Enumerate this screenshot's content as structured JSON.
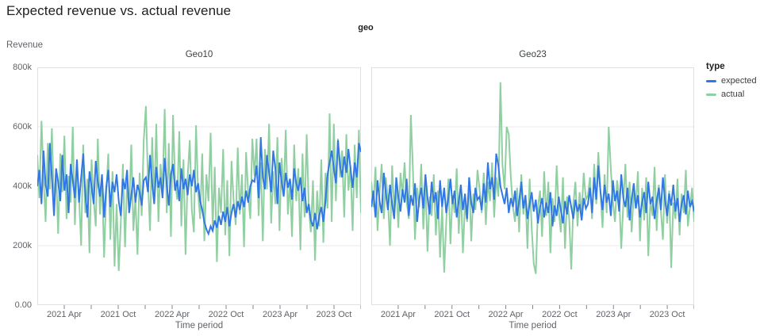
{
  "chart_data": {
    "type": "line",
    "title": "Expected revenue vs. actual revenue",
    "facet_label": "geo",
    "xlabel": "Time period",
    "ylabel": "Revenue",
    "ylim": [
      0,
      800000
    ],
    "y_tick_labels": [
      "800k",
      "600k",
      "400k",
      "200k",
      "0.00"
    ],
    "y_tick_values": [
      800000,
      600000,
      400000,
      200000,
      0
    ],
    "x_tick_labels": [
      "2021 Apr",
      "2021 Oct",
      "2022 Apr",
      "2022 Oct",
      "2023 Apr",
      "2023 Oct"
    ],
    "x_range_months": [
      "2021-01",
      "2023-12"
    ],
    "frequency": "weekly",
    "values_unit": "thousands (k) of revenue",
    "grid": "horizontal",
    "legend": {
      "title": "type",
      "position": "right",
      "entries": [
        {
          "name": "expected",
          "color": "#3178e4"
        },
        {
          "name": "actual",
          "color": "#90cfa1"
        }
      ]
    },
    "panels": [
      {
        "title": "Geo10",
        "series": [
          {
            "name": "expected",
            "color": "#3178e4",
            "values": [
              400,
              455,
              340,
              520,
              405,
              365,
              545,
              430,
              300,
              460,
              415,
              350,
              505,
              385,
              440,
              310,
              475,
              420,
              360,
              490,
              345,
              430,
              510,
              375,
              295,
              450,
              400,
              340,
              485,
              415,
              365,
              440,
              295,
              395,
              455,
              330,
              415,
              380,
              440,
              350,
              300,
              425,
              390,
              455,
              310,
              370,
              430,
              345,
              405,
              380,
              335,
              420,
              430,
              380,
              505,
              410,
              340,
              465,
              395,
              430,
              360,
              495,
              405,
              335,
              440,
              475,
              385,
              420,
              350,
              460,
              390,
              425,
              370,
              440,
              400,
              455,
              380,
              410,
              350,
              320,
              280,
              255,
              240,
              265,
              250,
              285,
              260,
              300,
              270,
              315,
              280,
              330,
              265,
              310,
              340,
              295,
              350,
              320,
              365,
              330,
              385,
              345,
              400,
              420,
              415,
              470,
              360,
              565,
              430,
              390,
              505,
              445,
              380,
              520,
              460,
              340,
              480,
              415,
              365,
              445,
              395,
              425,
              355,
              460,
              410,
              385,
              430,
              350,
              395,
              310,
              340,
              285,
              265,
              310,
              255,
              300,
              330,
              280,
              350,
              440,
              480,
              520,
              460,
              410,
              555,
              470,
              430,
              500,
              445,
              525,
              460,
              395,
              480,
              430,
              545,
              515
            ]
          },
          {
            "name": "actual",
            "color": "#90cfa1",
            "values": [
              505,
              360,
              620,
              430,
              280,
              545,
              390,
              595,
              330,
              455,
              240,
              510,
              380,
              570,
              290,
              435,
              345,
              600,
              270,
              480,
              365,
              200,
              540,
              310,
              425,
              175,
              490,
              355,
              265,
              560,
              305,
              430,
              160,
              375,
              510,
              220,
              450,
              130,
              340,
              115,
              280,
              475,
              195,
              415,
              320,
              540,
              250,
              360,
              170,
              445,
              300,
              555,
              670,
              420,
              250,
              565,
              345,
              610,
              280,
              475,
              390,
              660,
              310,
              545,
              230,
              640,
              415,
              355,
              585,
              265,
              490,
              170,
              430,
              555,
              320,
              245,
              605,
              380,
              290,
              510,
              215,
              440,
              350,
              580,
              260,
              465,
              145,
              395,
              310,
              525,
              235,
              420,
              165,
              485,
              355,
              270,
              530,
              305,
              440,
              195,
              515,
              375,
              290,
              560,
              435,
              560,
              300,
              480,
              215,
              525,
              390,
              610,
              275,
              450,
              340,
              565,
              250,
              495,
              375,
              590,
              305,
              420,
              230,
              540,
              350,
              460,
              185,
              510,
              295,
              575,
              330,
              245,
              420,
              150,
              385,
              265,
              490,
              210,
              445,
              325,
              645,
              280,
              610,
              350,
              560,
              430,
              520,
              295,
              575,
              385,
              470,
              250,
              540,
              360,
              590,
              310
            ]
          }
        ]
      },
      {
        "title": "Geo23",
        "series": [
          {
            "name": "expected",
            "color": "#3178e4",
            "values": [
              330,
              385,
              295,
              420,
              350,
              310,
              445,
              375,
              320,
              405,
              340,
              290,
              430,
              365,
              315,
              390,
              345,
              425,
              300,
              370,
              335,
              410,
              280,
              355,
              395,
              325,
              440,
              360,
              305,
              415,
              345,
              380,
              290,
              420,
              330,
              395,
              310,
              360,
              425,
              340,
              385,
              295,
              350,
              405,
              320,
              375,
              290,
              430,
              345,
              310,
              395,
              355,
              365,
              320,
              410,
              345,
              480,
              390,
              430,
              355,
              510,
              470,
              400,
              370,
              340,
              395,
              310,
              360,
              330,
              385,
              300,
              350,
              415,
              325,
              370,
              290,
              340,
              380,
              315,
              355,
              275,
              330,
              360,
              295,
              345,
              310,
              380,
              265,
              335,
              300,
              365,
              320,
              275,
              350,
              305,
              370,
              330,
              290,
              355,
              315,
              340,
              285,
              360,
              325,
              340,
              395,
              310,
              430,
              355,
              470,
              385,
              320,
              405,
              345,
              375,
              300,
              420,
              350,
              385,
              315,
              440,
              360,
              330,
              395,
              285,
              355,
              410,
              325,
              370,
              295,
              345,
              380,
              310,
              415,
              340,
              365,
              290,
              350,
              395,
              320,
              430,
              355,
              300,
              375,
              335,
              405,
              315,
              360,
              280,
              340,
              370,
              305,
              385,
              330,
              350,
              315
            ]
          },
          {
            "name": "actual",
            "color": "#90cfa1",
            "values": [
              415,
              330,
              465,
              250,
              380,
              475,
              290,
              430,
              355,
              200,
              470,
              315,
              405,
              260,
              445,
              370,
              480,
              350,
              290,
              640,
              455,
              220,
              395,
              330,
              475,
              255,
              410,
              180,
              365,
              300,
              440,
              235,
              385,
              160,
              330,
              110,
              280,
              425,
              205,
              370,
              310,
              460,
              240,
              395,
              175,
              345,
              280,
              430,
              215,
              375,
              320,
              455,
              390,
              310,
              445,
              270,
              415,
              350,
              480,
              295,
              430,
              365,
              750,
              470,
              390,
              600,
              575,
              430,
              330,
              280,
              395,
              245,
              440,
              305,
              370,
              190,
              425,
              260,
              140,
              105,
              330,
              385,
              230,
              450,
              300,
              415,
              175,
              360,
              280,
              470,
              320,
              245,
              430,
              190,
              365,
              290,
              120,
              340,
              415,
              265,
              380,
              310,
              445,
              355,
              370,
              430,
              290,
              475,
              340,
              515,
              385,
              260,
              440,
              310,
              600,
              455,
              350,
              280,
              420,
              365,
              190,
              340,
              475,
              295,
              415,
              245,
              380,
              330,
              450,
              215,
              395,
              285,
              430,
              165,
              355,
              300,
              465,
              250,
              405,
              320,
              220,
              440,
              275,
              385,
              125,
              345,
              290,
              425,
              235,
              375,
              310,
              455,
              265,
              330,
              395,
              280
            ]
          }
        ]
      }
    ],
    "layout": {
      "panel_border_color": "#e0e0e0",
      "gridline_color": "#e8eaed",
      "tick_color": "#80868b"
    }
  }
}
